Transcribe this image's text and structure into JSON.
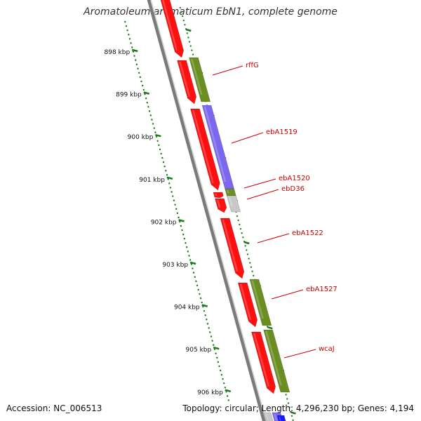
{
  "title": "Aromatoleum aromaticum EbN1, complete genome",
  "footer": {
    "accession": "Accession: NC_006513",
    "topology": "Topology: circular; Length: 4,296,230 bp; Genes: 4,194"
  },
  "kbp_ticks": [
    "898 kbp",
    "899 kbp",
    "900 kbp",
    "901 kbp",
    "902 kbp",
    "903 kbp",
    "904 kbp",
    "905 kbp",
    "906 kbp"
  ],
  "gene_labels": [
    "rffG",
    "ebA1519",
    "ebA1520",
    "ebD36",
    "ebA1522",
    "ebA1527",
    "wcaJ"
  ],
  "colors": {
    "forward_cds": "#ff1010",
    "reverse_cds": "#6b8e23",
    "purple_cds": "#7b68ee",
    "gray_feature": "#c8c8c8",
    "blue_feature": "#1a1aff",
    "backbone": "#7a7a7a",
    "tick_marks": "#1a7a1a",
    "label_lines": "#cc0000"
  }
}
